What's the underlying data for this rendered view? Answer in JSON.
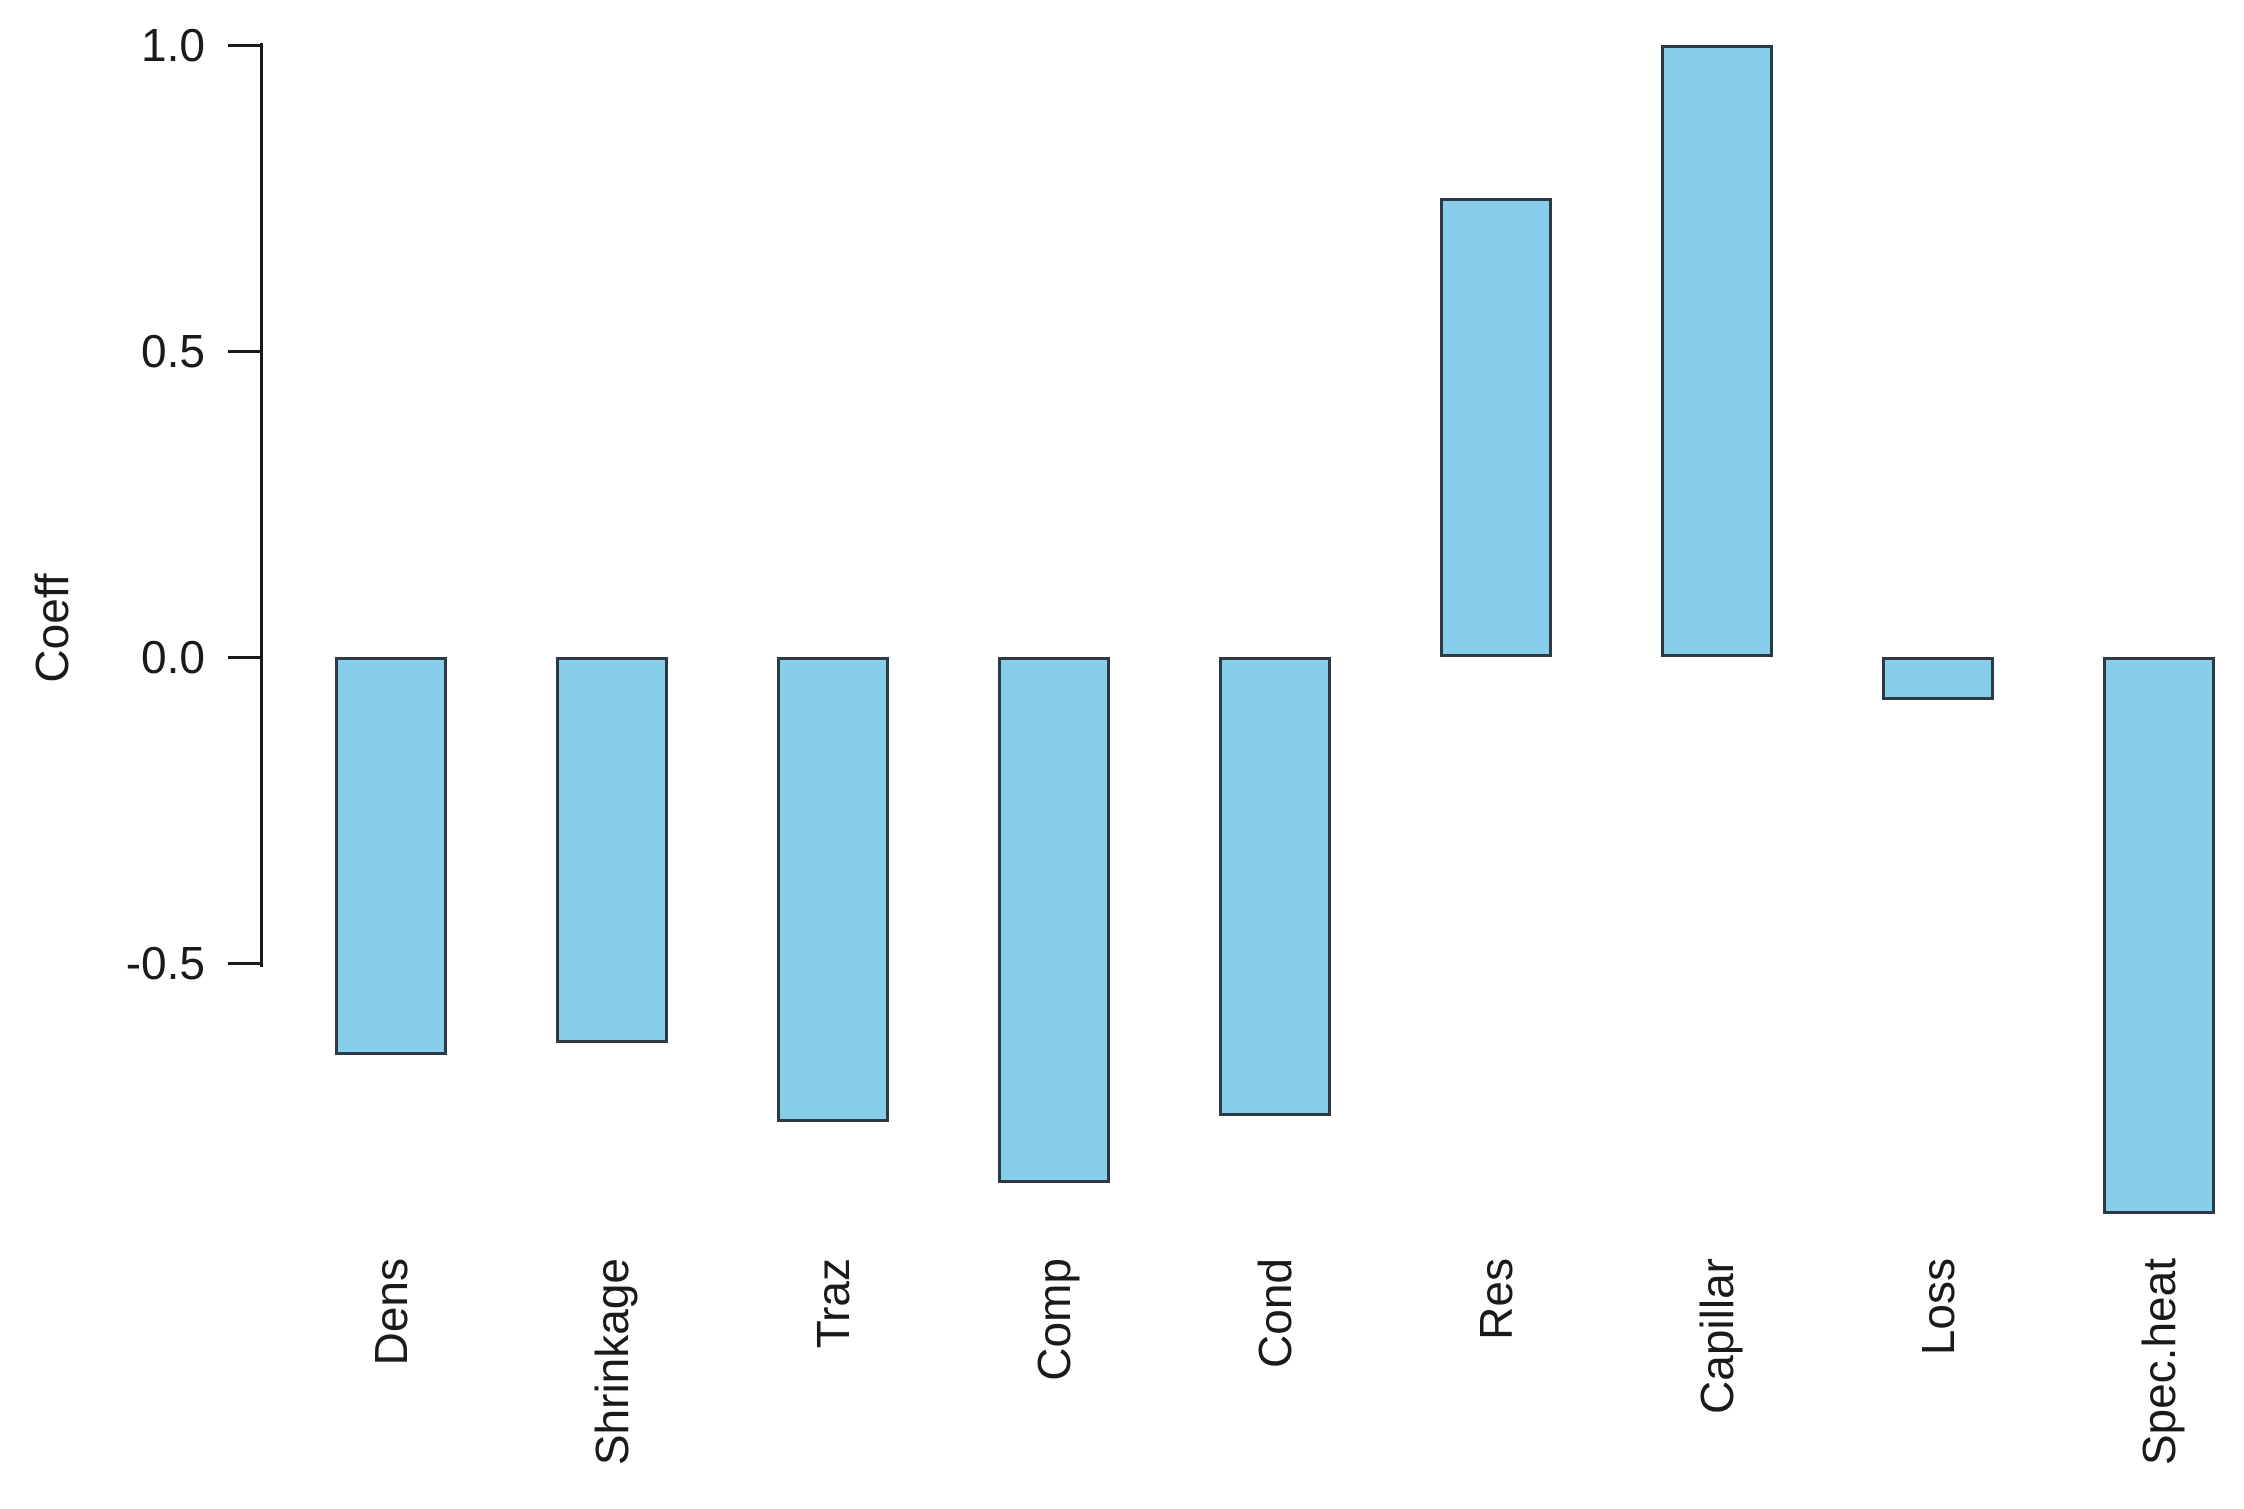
{
  "chart_data": {
    "type": "bar",
    "title": "",
    "xlabel": "",
    "ylabel": "Coeff",
    "categories": [
      "Dens",
      "Shrinkage",
      "Traz",
      "Comp",
      "Cond",
      "Res",
      "Capillar",
      "Loss",
      "Spec.heat"
    ],
    "values": [
      -0.65,
      -0.63,
      -0.76,
      -0.86,
      -0.75,
      0.75,
      1.0,
      -0.07,
      -0.91
    ],
    "yticks": [
      1.0,
      0.5,
      0.0,
      -0.5
    ],
    "ytick_labels": [
      "1.0",
      "0.5",
      "0.0",
      "-0.5"
    ],
    "ylim": [
      -0.95,
      1.0
    ],
    "grid": false,
    "legend_position": "none",
    "background_color": "#ffffff",
    "bar_fill_color": "#87CEEB",
    "bar_border_color": "#2d3a44",
    "axis_color": "#1a1a1a",
    "text_color": "#1a1a1a",
    "x_labels_rotation": "90deg-counter-clockwise"
  }
}
